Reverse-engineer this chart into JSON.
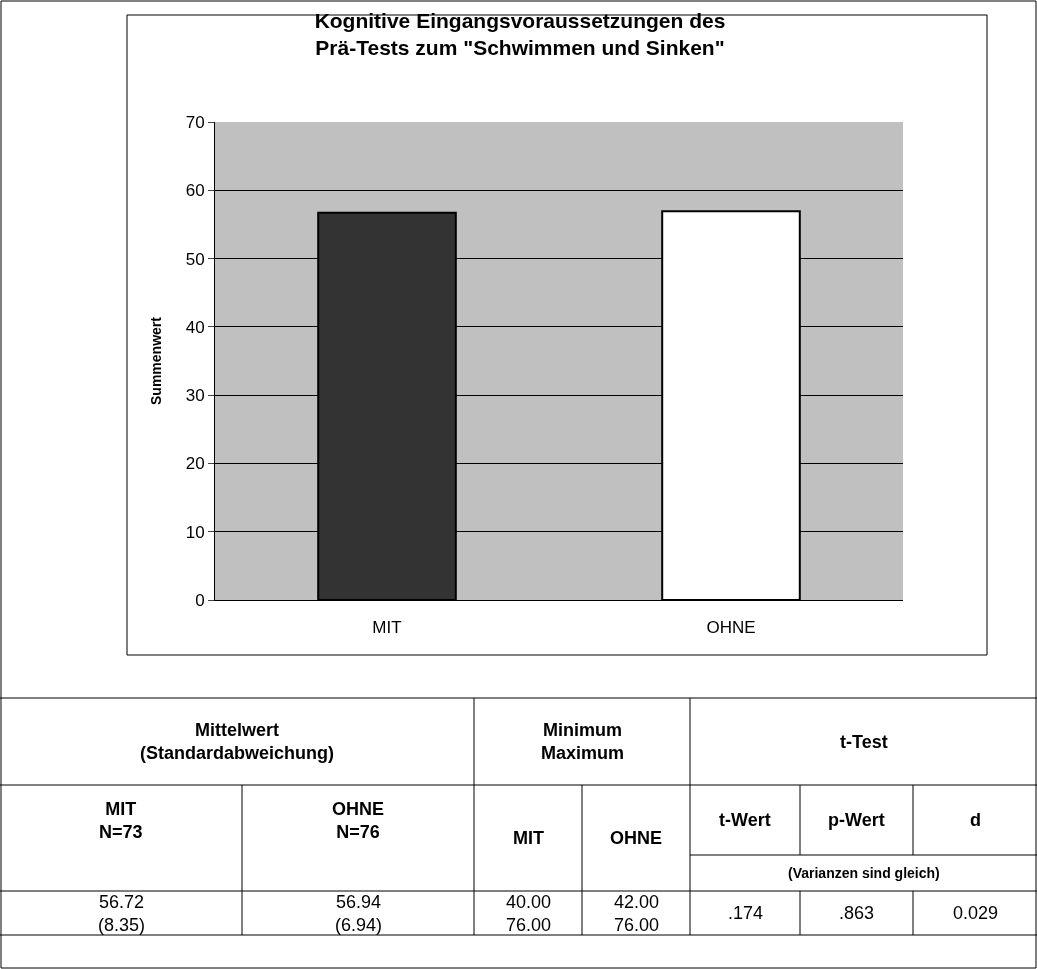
{
  "chart_data": {
    "type": "bar",
    "title": "Kognitive Eingangsvoraussetzungen des\nPrä-Tests zum \"Schwimmen und Sinken\"",
    "ylabel": "Summenwert",
    "categories": [
      "MIT",
      "OHNE"
    ],
    "values": [
      56.72,
      56.94
    ],
    "colors": [
      "#333333",
      "#ffffff"
    ],
    "ylim": [
      0,
      70
    ],
    "yticks": [
      0,
      10,
      20,
      30,
      40,
      50,
      60,
      70
    ],
    "grid": "y",
    "legend": false,
    "annotations": [
      "Mittelwert\n(Standardabweichung)",
      "Minimum\nMaximum",
      "t-Test",
      "MIT\nN=73",
      "OHNE\nN=76",
      "MIT",
      "OHNE",
      "t-Wert",
      "p-Wert",
      "d",
      "(Varianzen sind gleich)",
      "56.72\n(8.35)",
      "56.94\n(6.94)",
      "40.00\n76.00",
      "42.00\n76.00",
      ".174",
      ".863",
      "0.029"
    ]
  }
}
